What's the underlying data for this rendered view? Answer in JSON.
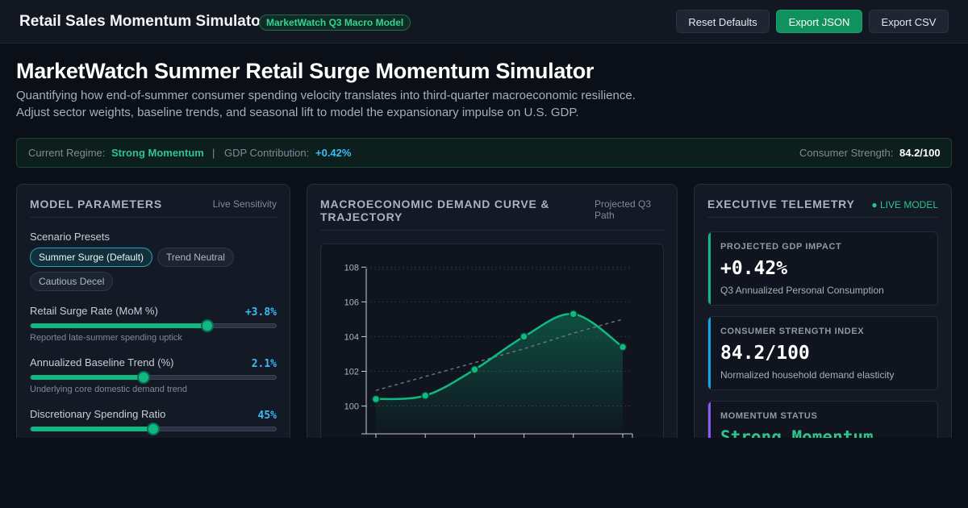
{
  "header": {
    "title": "Retail Sales Momentum Simulator",
    "badge": "MarketWatch Q3 Macro Model",
    "buttons": {
      "reset": "Reset Defaults",
      "export_json": "Export JSON",
      "export_csv": "Export CSV"
    }
  },
  "hero": {
    "title": "MarketWatch Summer Retail Surge Momentum Simulator",
    "description": "Quantifying how end-of-summer consumer spending velocity translates into third-quarter macroeconomic resilience. Adjust sector weights, baseline trends, and seasonal lift to model the expansionary impulse on U.S. GDP."
  },
  "status": {
    "regime_label": "Current Regime:",
    "regime_value": "Strong Momentum",
    "separator": "|",
    "gdp_label": "GDP Contribution:",
    "gdp_value": "+0.42%",
    "strength_label": "Consumer Strength:",
    "strength_value": "84.2/100"
  },
  "params_panel": {
    "title": "Model Parameters",
    "subtitle": "Live Sensitivity",
    "presets_label": "Scenario Presets",
    "presets": [
      {
        "label": "Summer Surge (Default)",
        "active": true
      },
      {
        "label": "Trend Neutral",
        "active": false
      },
      {
        "label": "Cautious Decel",
        "active": false
      }
    ],
    "params": [
      {
        "label": "Retail Surge Rate (MoM %)",
        "value": "+3.8%",
        "help": "Reported late-summer spending uptick",
        "level": 0.72
      },
      {
        "label": "Annualized Baseline Trend (%)",
        "value": "2.1%",
        "help": "Underlying core domestic demand trend",
        "level": 0.46
      },
      {
        "label": "Discretionary Spending Ratio",
        "value": "45%",
        "help": "",
        "level": 0.5
      }
    ]
  },
  "chart_panel": {
    "title": "Macroeconomic Demand Curve & Trajectory",
    "subtitle": "Projected Q3 Path"
  },
  "chart_data": {
    "type": "line",
    "title": "",
    "xlabel": "",
    "ylabel": "",
    "yticks": [
      "100",
      "102",
      "104",
      "106",
      "108"
    ],
    "ylim": [
      98.4,
      108.2
    ],
    "x_count": 6,
    "grid": true,
    "series": [
      {
        "values": [
          100.4,
          100.6,
          102.1,
          104.0,
          105.3,
          103.4
        ],
        "color": "#10b981"
      },
      {
        "values": [
          100.9,
          101.7,
          102.5,
          103.3,
          104.2,
          105.0
        ],
        "color": "#6b7280",
        "dashed": true
      }
    ]
  },
  "telemetry_panel": {
    "title": "Executive Telemetry",
    "live_label": "● LIVE MODEL",
    "metrics": [
      {
        "label": "Projected GDP Impact",
        "value": "+0.42%",
        "note": "Q3 Annualized Personal Consumption",
        "accent": "#10b981"
      },
      {
        "label": "Consumer Strength Index",
        "value": "84.2/100",
        "note": "Normalized household demand elasticity",
        "accent": "#0ea5e9"
      },
      {
        "label": "Momentum Status",
        "value": "Strong Momentum",
        "note": "",
        "accent": "#8b5cf6"
      }
    ]
  }
}
